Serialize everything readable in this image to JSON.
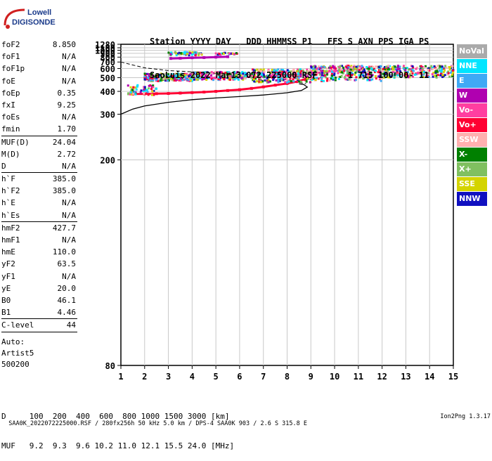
{
  "logo": {
    "line1": "Lowell",
    "line2": "DIGISONDE"
  },
  "header": {
    "line1": "Station YYYY DAY   DDD HHMMSS P1   FFS S AXN PPS IGA PS",
    "line2": "SaoLuis 2022 Mar13 072 225000 RSF      1 715 100 00- 11"
  },
  "params_group1": [
    {
      "name": "foF2",
      "value": "8.850"
    },
    {
      "name": "foF1",
      "value": "N/A"
    },
    {
      "name": "foF1p",
      "value": "N/A"
    },
    {
      "name": "foE",
      "value": "N/A"
    },
    {
      "name": "foEp",
      "value": "0.35"
    },
    {
      "name": "fxI",
      "value": "9.25"
    },
    {
      "name": "foEs",
      "value": "N/A"
    },
    {
      "name": "fmin",
      "value": "1.70"
    }
  ],
  "params_group2": [
    {
      "name": "MUF(D)",
      "value": "24.04"
    },
    {
      "name": "M(D)",
      "value": "2.72"
    },
    {
      "name": "D",
      "value": "N/A"
    }
  ],
  "params_group3": [
    {
      "name": "h`F",
      "value": "385.0"
    },
    {
      "name": "h`F2",
      "value": "385.0"
    },
    {
      "name": "h`E",
      "value": "N/A"
    },
    {
      "name": "h`Es",
      "value": "N/A"
    }
  ],
  "params_group4": [
    {
      "name": "hmF2",
      "value": "427.7"
    },
    {
      "name": "hmF1",
      "value": "N/A"
    },
    {
      "name": "hmE",
      "value": "110.0"
    },
    {
      "name": "yF2",
      "value": "63.5"
    },
    {
      "name": "yF1",
      "value": "N/A"
    },
    {
      "name": "yE",
      "value": "20.0"
    },
    {
      "name": "B0",
      "value": "46.1"
    },
    {
      "name": "B1",
      "value": "4.46"
    }
  ],
  "clevel": {
    "name": "C-level",
    "value": "44"
  },
  "auto_info": {
    "line1": "Auto:",
    "line2": "Artist5",
    "line3": "500200"
  },
  "legend": [
    {
      "label": "NoVal",
      "color": "#aaaaaa"
    },
    {
      "label": "NNE",
      "color": "#00e5ff"
    },
    {
      "label": "E",
      "color": "#3fa9f5"
    },
    {
      "label": "W",
      "color": "#b000b0"
    },
    {
      "label": "Vo-",
      "color": "#ff3fa0"
    },
    {
      "label": "Vo+",
      "color": "#ff0033"
    },
    {
      "label": "SSW",
      "color": "#ffb0b0"
    },
    {
      "label": "X-",
      "color": "#008000"
    },
    {
      "label": "X+",
      "color": "#80c060"
    },
    {
      "label": "SSE",
      "color": "#d4d400"
    },
    {
      "label": "NNW",
      "color": "#1010c0"
    }
  ],
  "dtable": {
    "line1": "D     100  200  400  600  800 1000 1500 3000 [km]",
    "line2": "MUF   9.2  9.3  9.6 10.2 11.0 12.1 15.5 24.0 [MHz]"
  },
  "footer": {
    "left": "SAA0K_2022072225000.RSF / 280fx256h 50 kHz 5.0 km / DPS-4 SAA0K 903 / 2.6 S 315.8 E",
    "right": "Ion2Png 1.3.17"
  },
  "chart_data": {
    "type": "scatter",
    "title": "",
    "xlabel": "",
    "ylabel": "",
    "xlim": [
      1,
      15
    ],
    "ylim": [
      80,
      1280
    ],
    "x_ticks": [
      1,
      2,
      3,
      4,
      5,
      6,
      7,
      8,
      9,
      10,
      11,
      12,
      13,
      14,
      15
    ],
    "y_ticks": [
      80,
      200,
      300,
      400,
      500,
      600,
      700,
      800,
      900,
      1000,
      1100,
      1280
    ],
    "scale_y": "reciprocal",
    "grid": true,
    "series": [
      {
        "name": "Vo+",
        "color": "#ff0033",
        "x": [
          1.5,
          2.0,
          2.5,
          3.0,
          3.5,
          4.0,
          4.5,
          5.0,
          5.5,
          6.0,
          6.5,
          7.0,
          7.5,
          8.0,
          8.5,
          8.85
        ],
        "y": [
          385,
          386,
          387,
          388,
          390,
          393,
          396,
          400,
          405,
          410,
          418,
          428,
          440,
          452,
          470,
          495
        ]
      },
      {
        "name": "Vo-",
        "color": "#ff3fa0",
        "x": [
          4.0,
          5.0,
          6.0,
          7.0,
          8.0,
          9.0,
          10.0,
          11.0
        ],
        "y": [
          500,
          498,
          505,
          510,
          520,
          540,
          570,
          590
        ]
      },
      {
        "name": "W",
        "color": "#b000b0",
        "x": [
          3.1,
          3.5,
          4.0,
          4.5,
          5.0,
          5.5
        ],
        "y": [
          770,
          775,
          785,
          790,
          800,
          810
        ]
      }
    ],
    "profile_line": {
      "x": [
        1.0,
        1.5,
        2.0,
        3.0,
        4.0,
        5.0,
        6.0,
        7.0,
        8.0,
        8.6,
        8.85,
        8.7,
        8.5
      ],
      "y": [
        300,
        318,
        330,
        345,
        357,
        365,
        372,
        380,
        392,
        405,
        427,
        445,
        450
      ]
    },
    "dashed_line": {
      "x": [
        1.0,
        1.5,
        2.0,
        3.0,
        4.0,
        5.0,
        6.0,
        7.0,
        8.0,
        8.8
      ],
      "y": [
        700,
        650,
        610,
        575,
        560,
        550,
        530,
        505,
        480,
        450
      ]
    }
  }
}
